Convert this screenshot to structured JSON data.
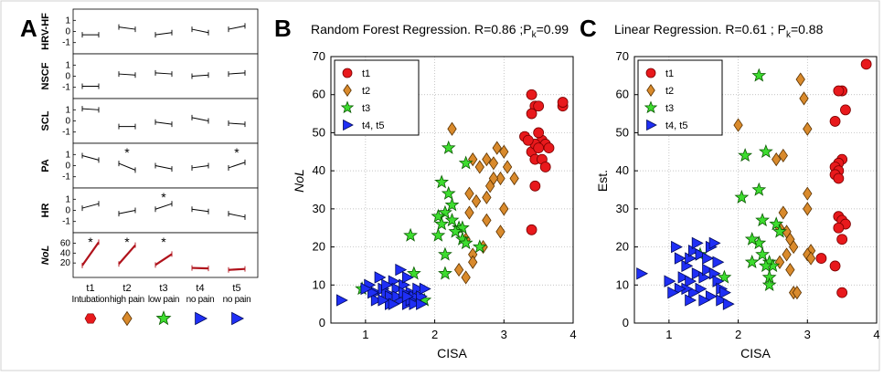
{
  "panel_letters": [
    "A",
    "B",
    "C"
  ],
  "colors": {
    "t1": "#e8191c",
    "t2": "#d98a2c",
    "t3": "#3ddc2f",
    "t45": "#1f2ff5",
    "nol": "#b0121b"
  },
  "panelA": {
    "rows": [
      {
        "label": "HRV-HF",
        "ticks": [
          "1",
          "0",
          "-1"
        ]
      },
      {
        "label": "NSCF",
        "ticks": [
          "1",
          "0",
          "-1"
        ]
      },
      {
        "label": "SCL",
        "ticks": [
          "1",
          "0",
          "-1"
        ]
      },
      {
        "label": "PA",
        "ticks": [
          "1",
          "0",
          "-1"
        ]
      },
      {
        "label": "HR",
        "ticks": [
          "1",
          "0",
          "-1"
        ]
      },
      {
        "label": "NoL",
        "ticks": [
          "60",
          "40",
          "20"
        ]
      }
    ],
    "stages": [
      "t1",
      "t2",
      "t3",
      "t4",
      "t5"
    ],
    "conditions": [
      "Intubation",
      "high pain",
      "low pain",
      "no pain",
      "no pain"
    ],
    "star": "*",
    "marker_icons": [
      "red-hexagon-icon",
      "orange-diamond-icon",
      "green-star-icon",
      "blue-triangle-icon",
      "blue-triangle-icon"
    ]
  },
  "chart_data": [
    {
      "type": "scatter",
      "panel": "B",
      "title": "Random Forest Regression. R=0.86 ;P",
      "title_sub": "k",
      "title_tail": "=0.99",
      "xlabel": "CISA",
      "ylabel": "NoL",
      "xlim": [
        0.5,
        4.0
      ],
      "ylim": [
        0,
        70
      ],
      "xticks": [
        1,
        2,
        3,
        4
      ],
      "yticks": [
        0,
        10,
        20,
        30,
        40,
        50,
        60,
        70
      ],
      "grid": true,
      "legend": {
        "placement": "top-left",
        "entries": [
          "t1",
          "t2",
          "t3",
          "t4, t5"
        ]
      },
      "series": [
        {
          "name": "t1",
          "marker": "circle",
          "points": [
            [
              3.4,
              60
            ],
            [
              3.45,
              57
            ],
            [
              3.4,
              55
            ],
            [
              3.5,
              57
            ],
            [
              3.85,
              57
            ],
            [
              3.85,
              58
            ],
            [
              3.3,
              49
            ],
            [
              3.4,
              45
            ],
            [
              3.55,
              48
            ],
            [
              3.6,
              47
            ],
            [
              3.45,
              47
            ],
            [
              3.5,
              46
            ],
            [
              3.45,
              43
            ],
            [
              3.55,
              43
            ],
            [
              3.6,
              41
            ],
            [
              3.45,
              36
            ],
            [
              3.4,
              24.5
            ],
            [
              3.35,
              48
            ],
            [
              3.65,
              46
            ],
            [
              3.5,
              50
            ]
          ]
        },
        {
          "name": "t2",
          "marker": "diamond",
          "points": [
            [
              2.25,
              51
            ],
            [
              2.55,
              43
            ],
            [
              2.75,
              43
            ],
            [
              2.9,
              46
            ],
            [
              3.0,
              45
            ],
            [
              2.85,
              42
            ],
            [
              2.65,
              41
            ],
            [
              2.8,
              36
            ],
            [
              2.95,
              38
            ],
            [
              3.15,
              38
            ],
            [
              2.5,
              34
            ],
            [
              2.6,
              32
            ],
            [
              2.75,
              33
            ],
            [
              3.0,
              30
            ],
            [
              2.5,
              29
            ],
            [
              2.75,
              27
            ],
            [
              2.95,
              24
            ],
            [
              2.45,
              22
            ],
            [
              2.7,
              20
            ],
            [
              2.55,
              18
            ],
            [
              2.55,
              16
            ],
            [
              2.35,
              14
            ],
            [
              2.45,
              12
            ],
            [
              2.85,
              38
            ],
            [
              3.05,
              41
            ]
          ]
        },
        {
          "name": "t3",
          "marker": "star",
          "points": [
            [
              2.45,
              42
            ],
            [
              2.2,
              46
            ],
            [
              2.1,
              37
            ],
            [
              2.2,
              34
            ],
            [
              2.25,
              31
            ],
            [
              2.25,
              27
            ],
            [
              2.15,
              29
            ],
            [
              2.05,
              28
            ],
            [
              2.1,
              26
            ],
            [
              2.05,
              23
            ],
            [
              2.35,
              25
            ],
            [
              2.4,
              25
            ],
            [
              2.4,
              22
            ],
            [
              2.45,
              21
            ],
            [
              2.65,
              20
            ],
            [
              1.65,
              23
            ],
            [
              2.15,
              18
            ],
            [
              2.15,
              13
            ],
            [
              1.7,
              13
            ],
            [
              0.95,
              9
            ],
            [
              1.85,
              6
            ],
            [
              2.3,
              24
            ]
          ]
        },
        {
          "name": "t4, t5",
          "marker": "triangle",
          "points": [
            [
              0.65,
              6
            ],
            [
              1.05,
              10
            ],
            [
              1.15,
              8
            ],
            [
              1.2,
              12
            ],
            [
              1.25,
              9
            ],
            [
              1.3,
              8
            ],
            [
              1.35,
              7
            ],
            [
              1.4,
              11
            ],
            [
              1.45,
              9
            ],
            [
              1.5,
              6
            ],
            [
              1.55,
              10
            ],
            [
              1.5,
              14
            ],
            [
              1.6,
              12
            ],
            [
              1.65,
              8
            ],
            [
              1.7,
              7
            ],
            [
              1.75,
              9
            ],
            [
              1.6,
              5
            ],
            [
              1.35,
              5
            ],
            [
              1.15,
              6
            ],
            [
              1.25,
              6
            ],
            [
              1.45,
              7
            ],
            [
              1.55,
              8
            ],
            [
              1.65,
              6
            ],
            [
              1.7,
              5
            ],
            [
              1.8,
              7
            ],
            [
              1.8,
              5
            ],
            [
              1.85,
              9
            ],
            [
              1.4,
              5
            ],
            [
              1.3,
              10
            ],
            [
              1.1,
              8
            ],
            [
              1.0,
              9
            ],
            [
              1.6,
              7
            ]
          ]
        }
      ]
    },
    {
      "type": "scatter",
      "panel": "C",
      "title": "Linear Regression. R=0.61 ; P",
      "title_sub": "k",
      "title_tail": "=0.88",
      "xlabel": "CISA",
      "ylabel": "Est.",
      "xlim": [
        0.5,
        4.0
      ],
      "ylim": [
        0,
        70
      ],
      "xticks": [
        1,
        2,
        3,
        4
      ],
      "yticks": [
        0,
        10,
        20,
        30,
        40,
        50,
        60,
        70
      ],
      "grid": true,
      "legend": {
        "placement": "top-left",
        "entries": [
          "t1",
          "t2",
          "t3",
          "t4, t5"
        ]
      },
      "series": [
        {
          "name": "t1",
          "marker": "circle",
          "points": [
            [
              3.85,
              68
            ],
            [
              3.5,
              61
            ],
            [
              3.45,
              61
            ],
            [
              3.55,
              56
            ],
            [
              3.4,
              53
            ],
            [
              3.5,
              43
            ],
            [
              3.45,
              42
            ],
            [
              3.4,
              41
            ],
            [
              3.45,
              40
            ],
            [
              3.4,
              39
            ],
            [
              3.45,
              28
            ],
            [
              3.5,
              27
            ],
            [
              3.55,
              26
            ],
            [
              3.45,
              25
            ],
            [
              3.5,
              22
            ],
            [
              3.2,
              17
            ],
            [
              3.4,
              15
            ],
            [
              3.5,
              8
            ],
            [
              3.45,
              38
            ]
          ]
        },
        {
          "name": "t2",
          "marker": "diamond",
          "points": [
            [
              2.0,
              52
            ],
            [
              2.9,
              64
            ],
            [
              2.95,
              59
            ],
            [
              3.0,
              51
            ],
            [
              2.65,
              44
            ],
            [
              2.55,
              43
            ],
            [
              3.0,
              34
            ],
            [
              3.0,
              30
            ],
            [
              2.65,
              29
            ],
            [
              2.6,
              25
            ],
            [
              2.7,
              24
            ],
            [
              2.75,
              22
            ],
            [
              2.8,
              20
            ],
            [
              3.05,
              19
            ],
            [
              3.0,
              18
            ],
            [
              3.05,
              17
            ],
            [
              2.6,
              16
            ],
            [
              2.75,
              14
            ],
            [
              2.8,
              8
            ],
            [
              2.85,
              8
            ],
            [
              2.7,
              18
            ]
          ]
        },
        {
          "name": "t3",
          "marker": "star",
          "points": [
            [
              2.3,
              65
            ],
            [
              2.1,
              44
            ],
            [
              2.4,
              45
            ],
            [
              2.3,
              35
            ],
            [
              2.05,
              33
            ],
            [
              2.35,
              27
            ],
            [
              2.55,
              26
            ],
            [
              2.3,
              21
            ],
            [
              2.2,
              22
            ],
            [
              2.35,
              18
            ],
            [
              2.45,
              16
            ],
            [
              2.5,
              15
            ],
            [
              2.4,
              15
            ],
            [
              2.45,
              12
            ],
            [
              2.45,
              10
            ],
            [
              1.8,
              12
            ],
            [
              2.2,
              16
            ],
            [
              2.6,
              24
            ],
            [
              1.45,
              18
            ]
          ]
        },
        {
          "name": "t4, t5",
          "marker": "triangle",
          "points": [
            [
              0.6,
              13
            ],
            [
              1.1,
              20
            ],
            [
              1.15,
              17
            ],
            [
              1.25,
              15
            ],
            [
              1.3,
              17
            ],
            [
              1.35,
              19
            ],
            [
              1.4,
              21
            ],
            [
              1.45,
              18
            ],
            [
              1.55,
              17
            ],
            [
              1.6,
              20
            ],
            [
              1.65,
              21
            ],
            [
              1.2,
              12
            ],
            [
              1.3,
              11
            ],
            [
              1.4,
              13
            ],
            [
              1.5,
              12
            ],
            [
              1.55,
              14
            ],
            [
              1.65,
              13
            ],
            [
              1.7,
              11
            ],
            [
              1.75,
              9
            ],
            [
              1.8,
              8
            ],
            [
              1.75,
              6
            ],
            [
              1.6,
              7
            ],
            [
              1.45,
              9
            ],
            [
              1.35,
              8
            ],
            [
              1.25,
              9
            ],
            [
              1.15,
              9
            ],
            [
              1.05,
              8
            ],
            [
              1.0,
              11
            ],
            [
              1.5,
              6
            ],
            [
              1.3,
              6
            ],
            [
              1.7,
              16
            ],
            [
              1.85,
              5
            ]
          ]
        }
      ]
    }
  ],
  "panelA_data": {
    "rows": [
      {
        "label": "HRV-HF",
        "ylim": [
          -1.6,
          1.6
        ],
        "pairs": [
          [
            -0.3,
            -0.3
          ],
          [
            0.4,
            0.2
          ],
          [
            -0.3,
            -0.1
          ],
          [
            0.2,
            -0.1
          ],
          [
            0.2,
            0.5
          ]
        ],
        "stars": []
      },
      {
        "label": "NSCF",
        "ylim": [
          -1.6,
          1.6
        ],
        "pairs": [
          [
            -0.9,
            -0.9
          ],
          [
            0.2,
            0.1
          ],
          [
            0.3,
            0.2
          ],
          [
            0.0,
            0.1
          ],
          [
            0.2,
            0.3
          ]
        ],
        "stars": []
      },
      {
        "label": "SCL",
        "ylim": [
          -1.6,
          1.6
        ],
        "pairs": [
          [
            1.1,
            1.0
          ],
          [
            -0.5,
            -0.5
          ],
          [
            -0.1,
            -0.3
          ],
          [
            0.3,
            0.0
          ],
          [
            -0.2,
            -0.3
          ]
        ],
        "stars": []
      },
      {
        "label": "PA",
        "ylim": [
          -1.6,
          1.6
        ],
        "pairs": [
          [
            0.9,
            0.5
          ],
          [
            0.2,
            -0.4
          ],
          [
            0.0,
            -0.3
          ],
          [
            -0.2,
            0.0
          ],
          [
            -0.2,
            0.3
          ]
        ],
        "stars": [
          1,
          4
        ]
      },
      {
        "label": "HR",
        "ylim": [
          -1.6,
          1.6
        ],
        "pairs": [
          [
            0.2,
            0.6
          ],
          [
            -0.3,
            0.0
          ],
          [
            0.1,
            0.6
          ],
          [
            0.1,
            -0.1
          ],
          [
            -0.3,
            -0.6
          ]
        ],
        "stars": [
          2
        ]
      },
      {
        "label": "NoL",
        "ylim": [
          0,
          72
        ],
        "pairs": [
          [
            15,
            62
          ],
          [
            18,
            56
          ],
          [
            16,
            38
          ],
          [
            10,
            9
          ],
          [
            6,
            8
          ]
        ],
        "stars": [
          0,
          1,
          2
        ]
      }
    ]
  }
}
